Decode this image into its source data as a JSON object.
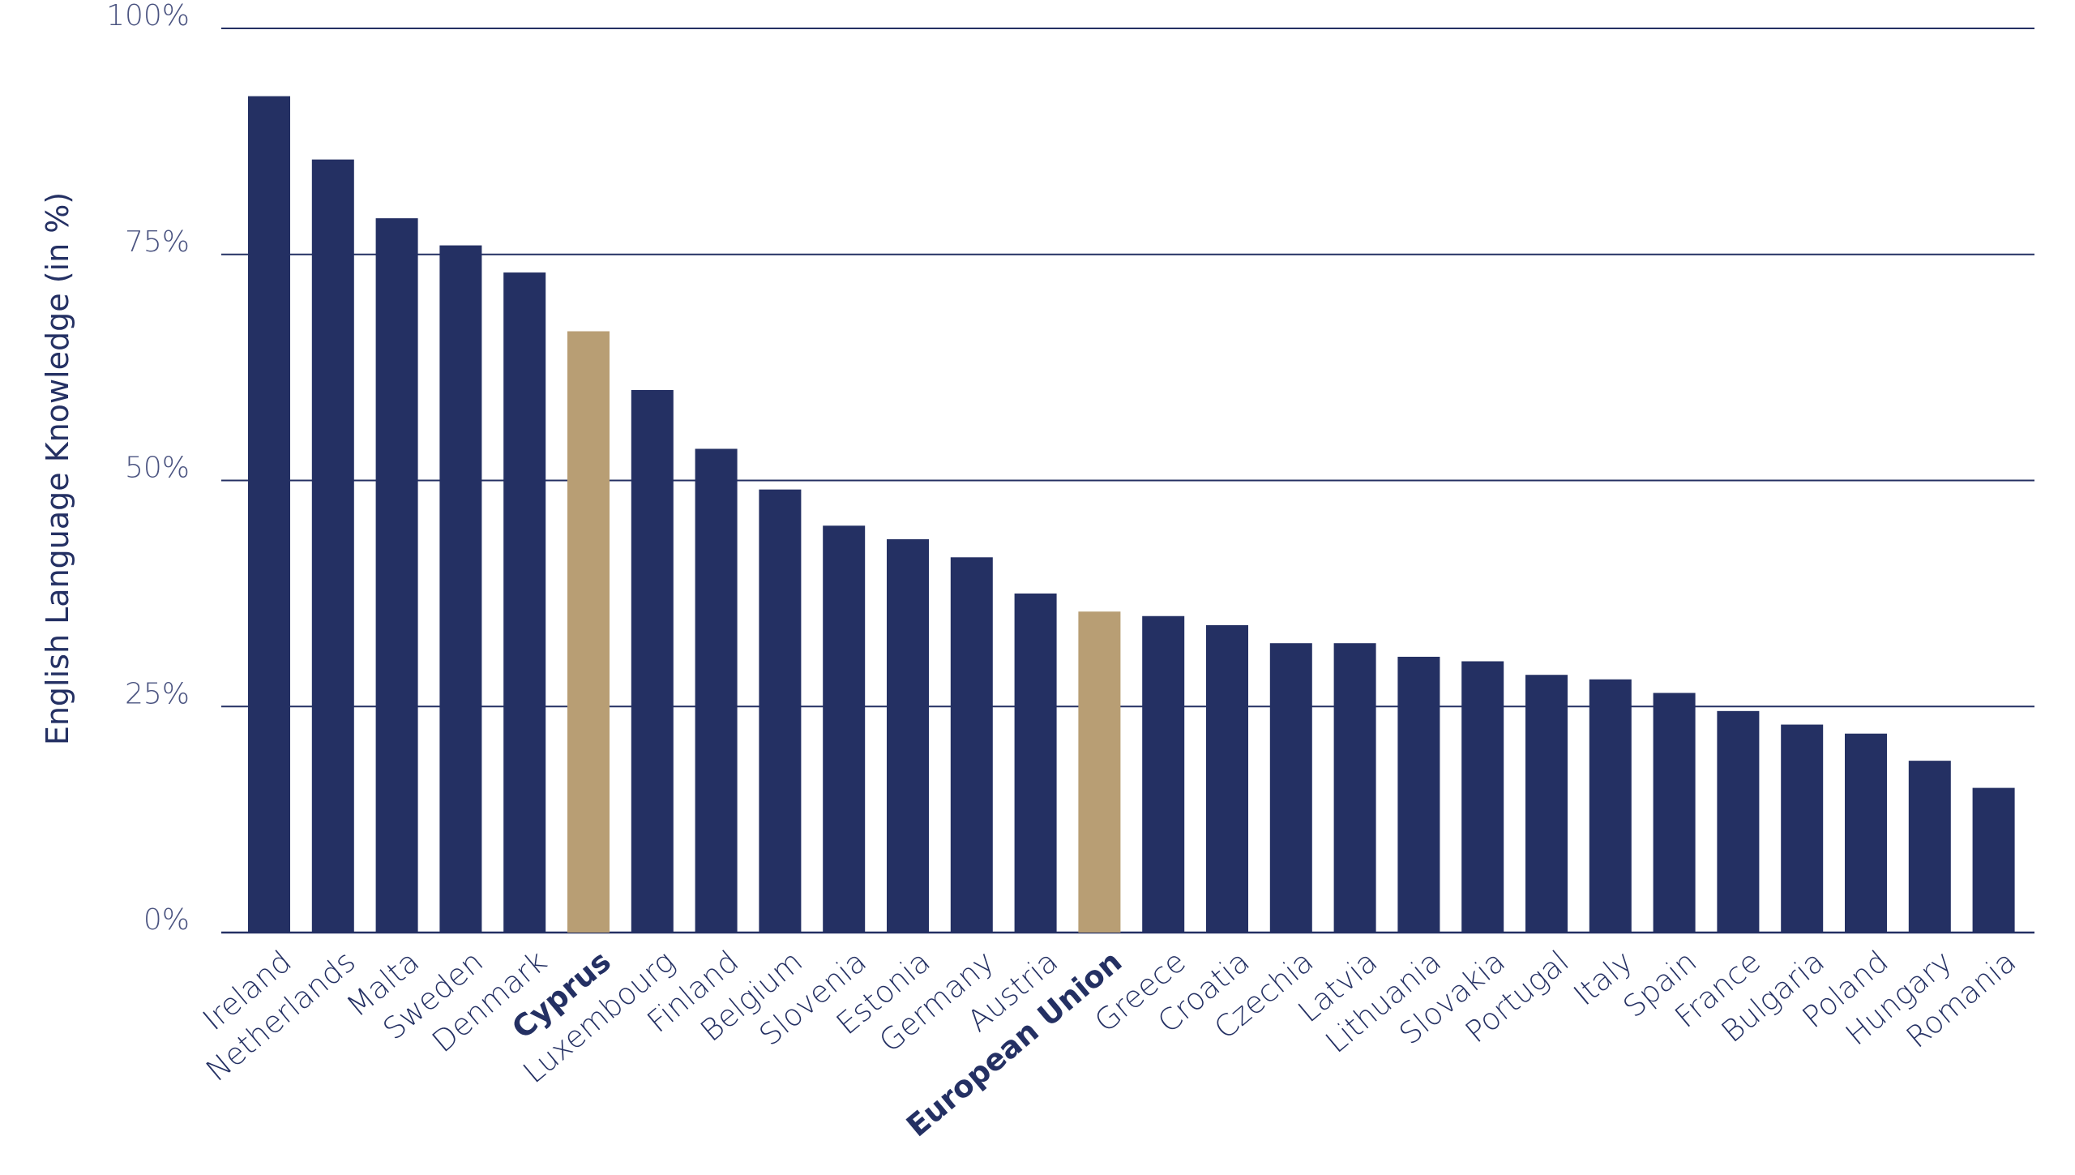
{
  "chart_data": {
    "type": "bar",
    "title": "",
    "xlabel": "",
    "ylabel": "English Language Knowledge (in %)",
    "ylim": [
      0,
      100
    ],
    "yticks": [
      {
        "value": 0,
        "label": "0%"
      },
      {
        "value": 25,
        "label": "25%"
      },
      {
        "value": 50,
        "label": "50%"
      },
      {
        "value": 75,
        "label": "75%"
      },
      {
        "value": 100,
        "label": "100%"
      }
    ],
    "grid": true,
    "categories": [
      "Ireland",
      "Netherlands",
      "Malta",
      "Sweden",
      "Denmark",
      "Cyprus",
      "Luxembourg",
      "Finland",
      "Belgium",
      "Slovenia",
      "Estonia",
      "Germany",
      "Austria",
      "European Union",
      "Greece",
      "Croatia",
      "Czechia",
      "Latvia",
      "Lithuania",
      "Slovakia",
      "Portugal",
      "Italy",
      "Spain",
      "France",
      "Bulgaria",
      "Poland",
      "Hungary",
      "Romania"
    ],
    "values": [
      92.5,
      85.5,
      79,
      76,
      73,
      66.5,
      60,
      53.5,
      49,
      45,
      43.5,
      41.5,
      37.5,
      35.5,
      35,
      34,
      32,
      32,
      30.5,
      30,
      28.5,
      28,
      26.5,
      24.5,
      23,
      22,
      19,
      16
    ],
    "highlighted": [
      "Cyprus",
      "European Union"
    ],
    "colors": {
      "bar": "#243063",
      "highlight": "#b89e74",
      "grid": "#243063",
      "text": "#243063",
      "tick_text": "#4a5380"
    }
  }
}
